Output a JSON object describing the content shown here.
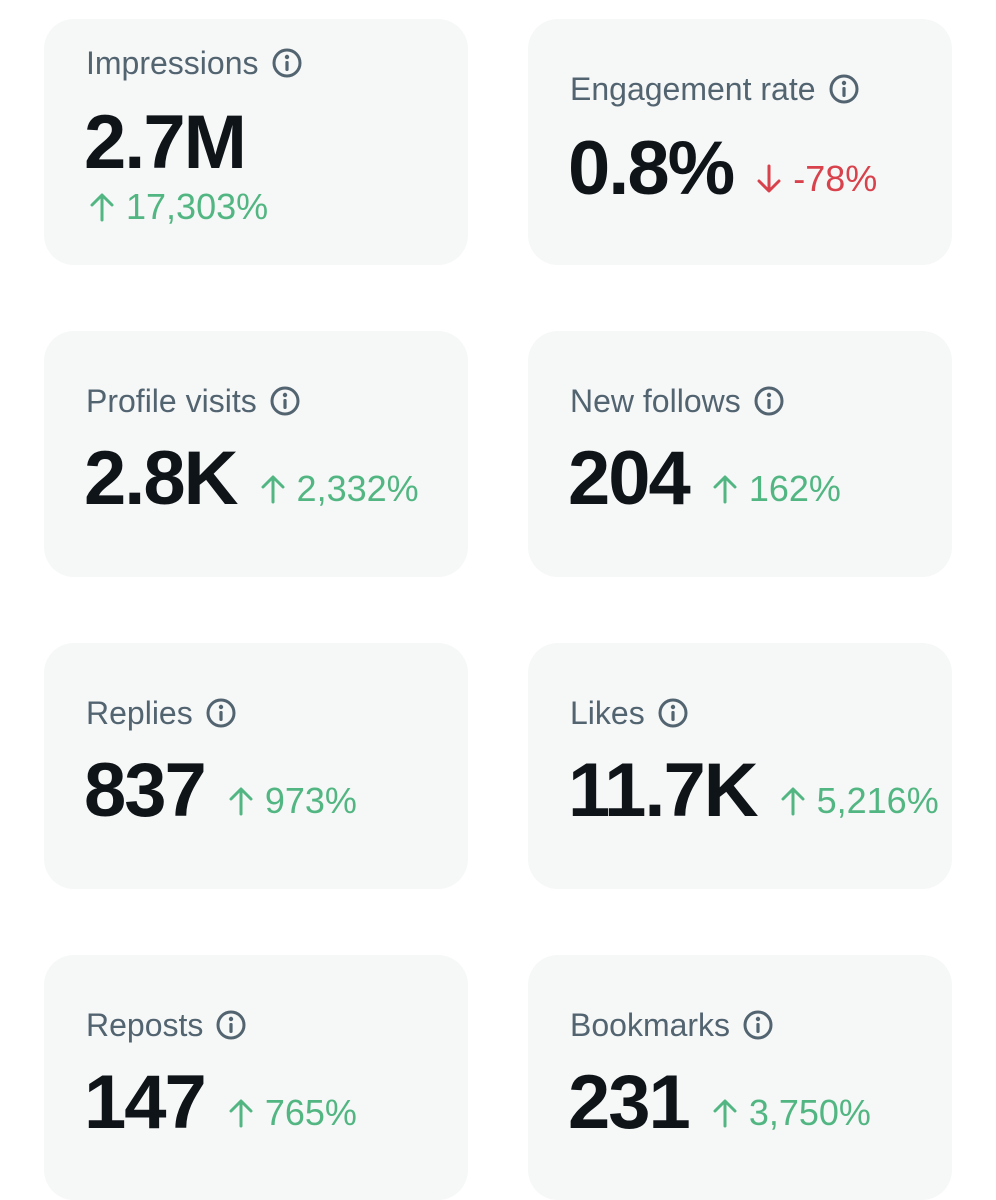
{
  "colors": {
    "up": "#52b682",
    "down": "#d8424c",
    "label": "#536471",
    "value": "#0f1419",
    "card": "#f6f7f7"
  },
  "metrics": {
    "impressions": {
      "label": "Impressions",
      "value": "2.7M",
      "change": "17,303%",
      "direction": "up"
    },
    "engagement_rate": {
      "label": "Engagement rate",
      "value": "0.8%",
      "change": "-78%",
      "direction": "down"
    },
    "profile_visits": {
      "label": "Profile visits",
      "value": "2.8K",
      "change": "2,332%",
      "direction": "up"
    },
    "new_follows": {
      "label": "New follows",
      "value": "204",
      "change": "162%",
      "direction": "up"
    },
    "replies": {
      "label": "Replies",
      "value": "837",
      "change": "973%",
      "direction": "up"
    },
    "likes": {
      "label": "Likes",
      "value": "11.7K",
      "change": "5,216%",
      "direction": "up"
    },
    "reposts": {
      "label": "Reposts",
      "value": "147",
      "change": "765%",
      "direction": "up"
    },
    "bookmarks": {
      "label": "Bookmarks",
      "value": "231",
      "change": "3,750%",
      "direction": "up"
    }
  }
}
